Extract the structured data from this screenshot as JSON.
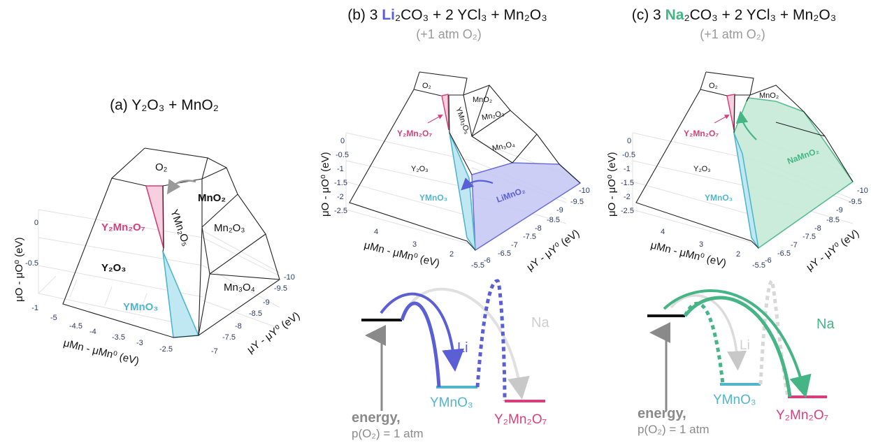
{
  "panels": {
    "a": {
      "title": "(a) Y₂O₃ + MnO₂"
    },
    "b": {
      "title_pre": "(b) 3 ",
      "title_ion": "Li",
      "title_post": "₂CO₃ + 2 YCl₃ + Mn₂O₃",
      "subtitle": "(+1 atm O₂)"
    },
    "c": {
      "title_pre": "(c) 3 ",
      "title_ion": "Na",
      "title_post": "₂CO₃ + 2 YCl₃ + Mn₂O₃",
      "subtitle": "(+1 atm O₂)"
    }
  },
  "regions": {
    "o2": "O₂",
    "mno2": "MnO₂",
    "mn2o3": "Mn₂O₃",
    "mn3o4": "Mn₃O₄",
    "ymn2o5": "YMn₂O₅",
    "y2o3": "Y₂O₃",
    "ymno3": "YMnO₃",
    "y2mn2o7": "Y₂Mn₂O₇",
    "limno2": "LiMnO₂",
    "namno2": "NaMnO₂"
  },
  "axes": {
    "z_label": "μO - μO⁰ (eV)",
    "x_label": "μMn - μMn⁰ (eV)",
    "y_label": "μY - μY⁰ (eV)",
    "a_z_ticks": [
      "0",
      "-0.5",
      "-1"
    ],
    "a_x_ticks": [
      "-5",
      "-4.5",
      "-4",
      "-3.5",
      "-3",
      "-2.5"
    ],
    "a_y_ticks": [
      "-10",
      "-9.5",
      "-9",
      "-8.5",
      "-8",
      "-7.5",
      "-7"
    ],
    "bc_z_ticks": [
      "0",
      "-0.5",
      "-1",
      "-1.5",
      "-2",
      "-2.5"
    ],
    "bc_x_ticks": [
      "4",
      "3",
      "2"
    ],
    "bc_y_ticks": [
      "-10",
      "-9.5",
      "-9",
      "-8.5",
      "-8",
      "-7.5",
      "-7",
      "-6.5",
      "-6",
      "-5.5"
    ]
  },
  "energy": {
    "label": "energy,",
    "pressure": "p(O₂) = 1 atm",
    "li": "Li",
    "na": "Na",
    "ymno3": "YMnO₃",
    "y2mn2o7": "Y₂Mn₂O₇"
  },
  "colors": {
    "ymno3": "#4fb6cc",
    "y2mn2o7": "#d63f7c",
    "li": "#5a5fd6",
    "na": "#45b585",
    "gray": "#bdbdbd"
  }
}
